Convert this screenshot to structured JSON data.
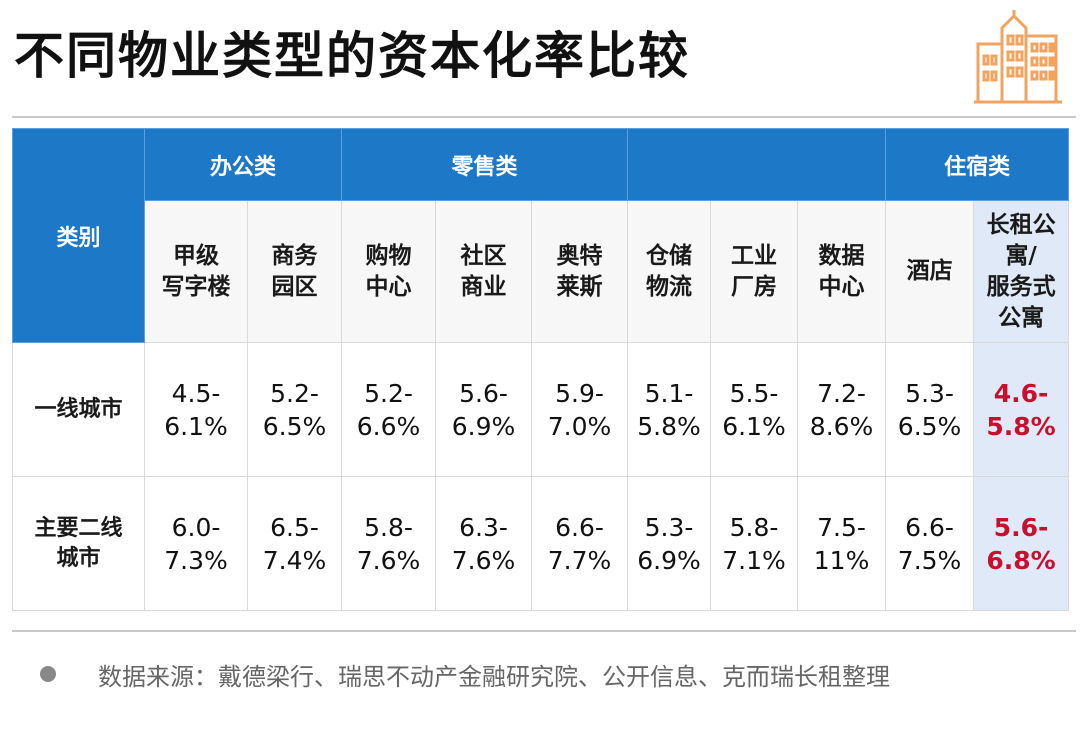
{
  "title": "不同物业类型的资本化率比较",
  "logo_icon": "city-buildings-icon",
  "accent_color": "#1e78c8",
  "highlight_text_color": "#c8102e",
  "table": {
    "category_header": "类别",
    "groups": {
      "office": "办公类",
      "retail": "零售类",
      "lodging": "住宿类"
    },
    "columns": {
      "office_a": [
        "甲级",
        "写字楼"
      ],
      "business_park": [
        "商务",
        "园区"
      ],
      "mall": [
        "购物",
        "中心"
      ],
      "community_retail": [
        "社区",
        "商业"
      ],
      "outlet": [
        "奥特",
        "莱斯"
      ],
      "logistics": [
        "仓储",
        "物流"
      ],
      "industrial": [
        "工业",
        "厂房"
      ],
      "datacenter": [
        "数据",
        "中心"
      ],
      "hotel": [
        "酒店"
      ],
      "apartment": [
        "长租公",
        "寓/",
        "服务式",
        "公寓"
      ]
    },
    "rows": [
      {
        "label": [
          "一线城市"
        ],
        "values": [
          [
            "4.5-",
            "6.1%"
          ],
          [
            "5.2-",
            "6.5%"
          ],
          [
            "5.2-",
            "6.6%"
          ],
          [
            "5.6-",
            "6.9%"
          ],
          [
            "5.9-",
            "7.0%"
          ],
          [
            "5.1-",
            "5.8%"
          ],
          [
            "5.5-",
            "6.1%"
          ],
          [
            "7.2-",
            "8.6%"
          ],
          [
            "5.3-",
            "6.5%"
          ],
          [
            "4.6-",
            "5.8%"
          ]
        ]
      },
      {
        "label": [
          "主要二线",
          "城市"
        ],
        "values": [
          [
            "6.0-",
            "7.3%"
          ],
          [
            "6.5-",
            "7.4%"
          ],
          [
            "5.8-",
            "7.6%"
          ],
          [
            "6.3-",
            "7.6%"
          ],
          [
            "6.6-",
            "7.7%"
          ],
          [
            "5.3-",
            "6.9%"
          ],
          [
            "5.8-",
            "7.1%"
          ],
          [
            "7.5-",
            "11%"
          ],
          [
            "6.6-",
            "7.5%"
          ],
          [
            "5.6-",
            "6.8%"
          ]
        ]
      }
    ]
  },
  "source": "数据来源：戴德梁行、瑞思不动产金融研究院、公开信息、克而瑞长租整理"
}
